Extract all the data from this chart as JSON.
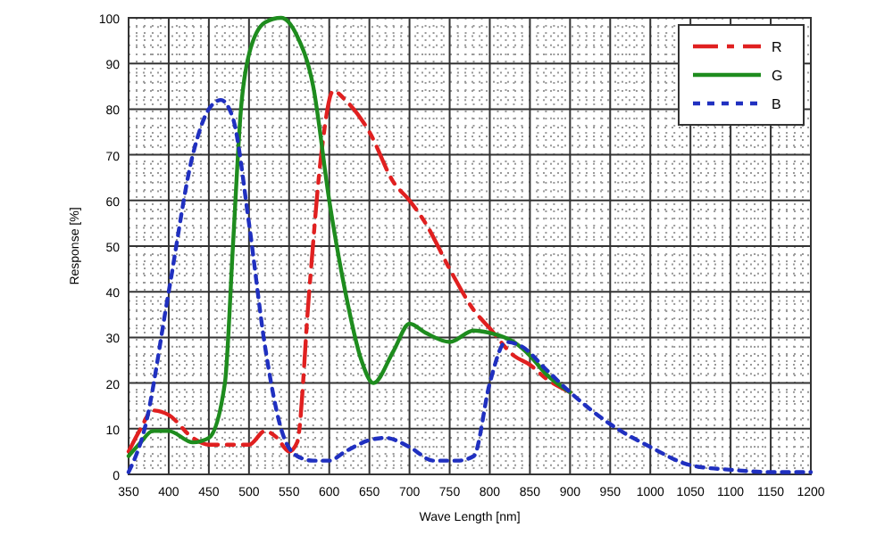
{
  "chart_data": {
    "type": "line",
    "xlabel": "Wave Length [nm]",
    "ylabel": "Response [%]",
    "xlim": [
      350,
      1200
    ],
    "ylim": [
      0,
      100
    ],
    "xticks": [
      350,
      400,
      450,
      500,
      550,
      600,
      650,
      700,
      750,
      800,
      850,
      900,
      950,
      1000,
      1050,
      1100,
      1150,
      1200
    ],
    "yticks": [
      0,
      10,
      20,
      30,
      40,
      50,
      60,
      70,
      80,
      90,
      100
    ],
    "grid": true,
    "legend": "top right",
    "series": [
      {
        "name": "R",
        "color": "#e02020",
        "line_style": "dashed",
        "x": [
          350,
          365,
          380,
          400,
          430,
          450,
          500,
          520,
          535,
          550,
          560,
          575,
          590,
          605,
          620,
          650,
          680,
          700,
          720,
          750,
          780,
          800,
          830,
          850,
          870,
          900
        ],
        "values": [
          5,
          10,
          14,
          13,
          8,
          6.5,
          6.5,
          9.5,
          8,
          5,
          7,
          40,
          70,
          84,
          82,
          75,
          64,
          60,
          55,
          45,
          36,
          32,
          26,
          24,
          21,
          18
        ]
      },
      {
        "name": "G",
        "color": "#1e8c1e",
        "line_style": "solid",
        "x": [
          350,
          365,
          380,
          400,
          430,
          450,
          470,
          480,
          490,
          500,
          520,
          540,
          560,
          580,
          600,
          620,
          640,
          655,
          680,
          700,
          720,
          750,
          780,
          800,
          830,
          850,
          870,
          900
        ],
        "values": [
          4,
          7,
          9.5,
          9.5,
          7,
          8,
          20,
          50,
          80,
          92,
          99,
          100,
          96,
          85,
          60,
          40,
          25,
          20,
          27,
          33,
          31,
          29,
          31.5,
          31,
          29,
          26,
          22,
          18
        ]
      },
      {
        "name": "B",
        "color": "#2030c0",
        "line_style": "dotted",
        "x": [
          350,
          370,
          400,
          430,
          450,
          465,
          480,
          500,
          520,
          540,
          560,
          580,
          600,
          620,
          650,
          670,
          700,
          730,
          760,
          780,
          800,
          820,
          840,
          870,
          900,
          950,
          1000,
          1050,
          1100,
          1150,
          1200
        ],
        "values": [
          0.5,
          10,
          40,
          70,
          80,
          82,
          78,
          55,
          28,
          10,
          4,
          3,
          3,
          5,
          7.5,
          8,
          6,
          3,
          3,
          4,
          20,
          29,
          28,
          23,
          18,
          11,
          6,
          2,
          1,
          0.5,
          0.5
        ]
      }
    ]
  }
}
